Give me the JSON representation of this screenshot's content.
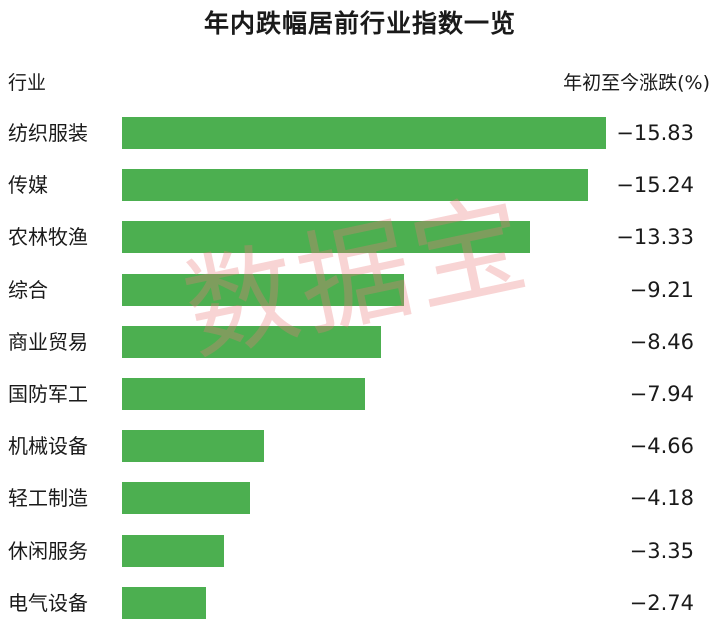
{
  "chart_data": {
    "type": "bar",
    "orientation": "horizontal",
    "title": "年内跌幅居前行业指数一览",
    "category_header": "行业",
    "value_header": "年初至今涨跌(%)",
    "watermark": "数据宝",
    "bar_color": "#4caf50",
    "categories": [
      "纺织服装",
      "传媒",
      "农林牧渔",
      "综合",
      "商业贸易",
      "国防军工",
      "机械设备",
      "轻工制造",
      "休闲服务",
      "电气设备"
    ],
    "values": [
      -15.83,
      -15.24,
      -13.33,
      -9.21,
      -8.46,
      -7.94,
      -4.66,
      -4.18,
      -3.35,
      -2.74
    ],
    "value_labels": [
      "−15.83",
      "−15.24",
      "−13.33",
      "−9.21",
      "−8.46",
      "−7.94",
      "−4.66",
      "−4.18",
      "−3.35",
      "−2.74"
    ],
    "grid": false,
    "legend": "none"
  }
}
